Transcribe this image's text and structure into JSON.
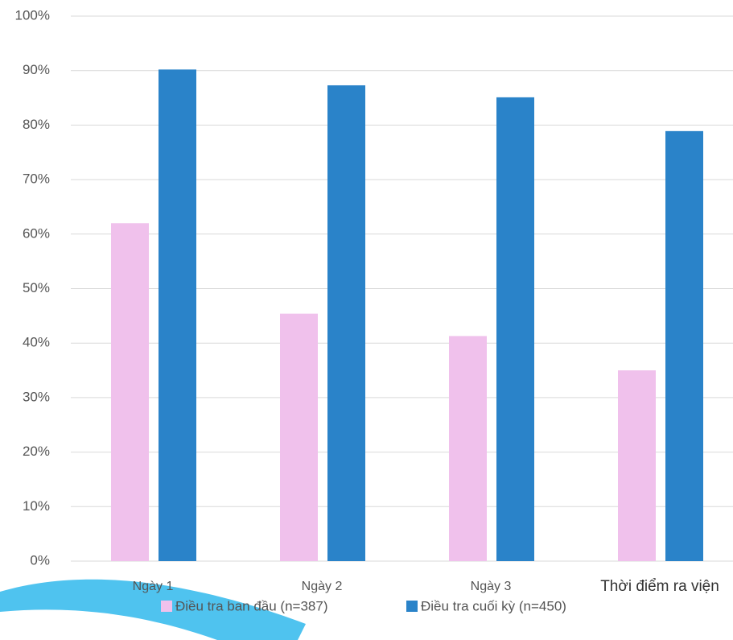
{
  "chart_data": {
    "type": "bar",
    "categories": [
      "Ngày 1",
      "Ngày 2",
      "Ngày 3",
      "Thời điểm ra viện"
    ],
    "series": [
      {
        "name": "Điều tra ban đầu (n=387)",
        "color": "#f0c1ec",
        "values": [
          62,
          45.4,
          41.3,
          35
        ]
      },
      {
        "name": "Điều tra cuối kỳ (n=450)",
        "color": "#2a83c9",
        "values": [
          90.2,
          87.3,
          85.1,
          78.9
        ]
      }
    ],
    "ylim": [
      0,
      100
    ],
    "yticks": [
      {
        "value": 0,
        "label": "0%"
      },
      {
        "value": 10,
        "label": "10%"
      },
      {
        "value": 20,
        "label": "20%"
      },
      {
        "value": 30,
        "label": "30%"
      },
      {
        "value": 40,
        "label": "40%"
      },
      {
        "value": 50,
        "label": "50%"
      },
      {
        "value": 60,
        "label": "60%"
      },
      {
        "value": 70,
        "label": "70%"
      },
      {
        "value": 80,
        "label": "80%"
      },
      {
        "value": 90,
        "label": "90%"
      },
      {
        "value": 100,
        "label": "100%"
      }
    ],
    "grid": true,
    "legend": "bottom"
  }
}
